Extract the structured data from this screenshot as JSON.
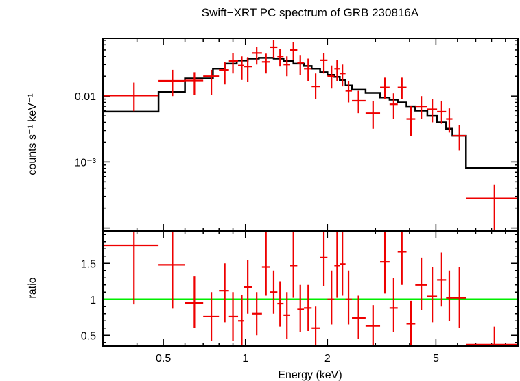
{
  "chart_data": {
    "type": "scatter",
    "title": "Swift−XRT PC spectrum of GRB 230816A",
    "xlabel": "Energy (keV)",
    "xscale": "log",
    "xlim": [
      0.3,
      10
    ],
    "xticks": [
      {
        "value": 0.5,
        "label": "0.5"
      },
      {
        "value": 1,
        "label": "1"
      },
      {
        "value": 2,
        "label": "2"
      },
      {
        "value": 5,
        "label": "5"
      }
    ],
    "colors": {
      "data": "#ee0000",
      "model": "#000000",
      "unity": "#00ee00"
    },
    "panels": [
      {
        "name": "spectrum",
        "ylabel": "counts s⁻¹ keV⁻¹",
        "yscale": "log",
        "ylim": [
          9e-05,
          0.075
        ],
        "yticks": [
          {
            "value": 0.01,
            "label": "0.01"
          },
          {
            "value": 0.001,
            "label": "10⁻³"
          }
        ],
        "data": [
          {
            "x": 0.39,
            "xlo": 0.3,
            "xhi": 0.48,
            "y": 0.0102,
            "ylo": 0.0059,
            "yhi": 0.016
          },
          {
            "x": 0.54,
            "xlo": 0.48,
            "xhi": 0.6,
            "y": 0.017,
            "ylo": 0.01,
            "yhi": 0.025
          },
          {
            "x": 0.65,
            "xlo": 0.6,
            "xhi": 0.7,
            "y": 0.0172,
            "ylo": 0.0105,
            "yhi": 0.023
          },
          {
            "x": 0.75,
            "xlo": 0.7,
            "xhi": 0.8,
            "y": 0.02,
            "ylo": 0.0105,
            "yhi": 0.025
          },
          {
            "x": 0.84,
            "xlo": 0.8,
            "xhi": 0.87,
            "y": 0.025,
            "ylo": 0.015,
            "yhi": 0.033
          },
          {
            "x": 0.9,
            "xlo": 0.87,
            "xhi": 0.94,
            "y": 0.034,
            "ylo": 0.022,
            "yhi": 0.045
          },
          {
            "x": 0.97,
            "xlo": 0.94,
            "xhi": 0.99,
            "y": 0.029,
            "ylo": 0.0175,
            "yhi": 0.04
          },
          {
            "x": 1.02,
            "xlo": 0.99,
            "xhi": 1.06,
            "y": 0.028,
            "ylo": 0.0165,
            "yhi": 0.039
          },
          {
            "x": 1.1,
            "xlo": 1.06,
            "xhi": 1.15,
            "y": 0.045,
            "ylo": 0.03,
            "yhi": 0.055
          },
          {
            "x": 1.19,
            "xlo": 1.15,
            "xhi": 1.23,
            "y": 0.033,
            "ylo": 0.022,
            "yhi": 0.044
          },
          {
            "x": 1.27,
            "xlo": 1.23,
            "xhi": 1.31,
            "y": 0.055,
            "ylo": 0.038,
            "yhi": 0.07
          },
          {
            "x": 1.34,
            "xlo": 1.31,
            "xhi": 1.38,
            "y": 0.04,
            "ylo": 0.028,
            "yhi": 0.052
          },
          {
            "x": 1.42,
            "xlo": 1.38,
            "xhi": 1.46,
            "y": 0.03,
            "ylo": 0.02,
            "yhi": 0.04
          },
          {
            "x": 1.5,
            "xlo": 1.46,
            "xhi": 1.55,
            "y": 0.05,
            "ylo": 0.035,
            "yhi": 0.065
          },
          {
            "x": 1.59,
            "xlo": 1.55,
            "xhi": 1.64,
            "y": 0.032,
            "ylo": 0.021,
            "yhi": 0.042
          },
          {
            "x": 1.7,
            "xlo": 1.64,
            "xhi": 1.75,
            "y": 0.026,
            "ylo": 0.017,
            "yhi": 0.037
          },
          {
            "x": 1.81,
            "xlo": 1.75,
            "xhi": 1.88,
            "y": 0.014,
            "ylo": 0.009,
            "yhi": 0.022
          },
          {
            "x": 1.94,
            "xlo": 1.88,
            "xhi": 2.0,
            "y": 0.035,
            "ylo": 0.022,
            "yhi": 0.045
          },
          {
            "x": 2.07,
            "xlo": 2.0,
            "xhi": 2.12,
            "y": 0.02,
            "ylo": 0.013,
            "yhi": 0.029
          },
          {
            "x": 2.17,
            "xlo": 2.12,
            "xhi": 2.22,
            "y": 0.026,
            "ylo": 0.017,
            "yhi": 0.035
          },
          {
            "x": 2.27,
            "xlo": 2.22,
            "xhi": 2.33,
            "y": 0.022,
            "ylo": 0.014,
            "yhi": 0.03
          },
          {
            "x": 2.39,
            "xlo": 2.33,
            "xhi": 2.46,
            "y": 0.012,
            "ylo": 0.008,
            "yhi": 0.017
          },
          {
            "x": 2.6,
            "xlo": 2.46,
            "xhi": 2.76,
            "y": 0.0085,
            "ylo": 0.0055,
            "yhi": 0.012
          },
          {
            "x": 2.94,
            "xlo": 2.76,
            "xhi": 3.12,
            "y": 0.0055,
            "ylo": 0.0032,
            "yhi": 0.0085
          },
          {
            "x": 3.25,
            "xlo": 3.12,
            "xhi": 3.38,
            "y": 0.0135,
            "ylo": 0.009,
            "yhi": 0.019
          },
          {
            "x": 3.5,
            "xlo": 3.38,
            "xhi": 3.62,
            "y": 0.0075,
            "ylo": 0.0045,
            "yhi": 0.011
          },
          {
            "x": 3.75,
            "xlo": 3.62,
            "xhi": 3.9,
            "y": 0.0135,
            "ylo": 0.009,
            "yhi": 0.019
          },
          {
            "x": 4.05,
            "xlo": 3.9,
            "xhi": 4.2,
            "y": 0.0045,
            "ylo": 0.0025,
            "yhi": 0.007
          },
          {
            "x": 4.42,
            "xlo": 4.2,
            "xhi": 4.65,
            "y": 0.007,
            "ylo": 0.0045,
            "yhi": 0.01
          },
          {
            "x": 4.85,
            "xlo": 4.65,
            "xhi": 5.05,
            "y": 0.0063,
            "ylo": 0.004,
            "yhi": 0.009
          },
          {
            "x": 5.25,
            "xlo": 5.05,
            "xhi": 5.45,
            "y": 0.0058,
            "ylo": 0.0038,
            "yhi": 0.0085
          },
          {
            "x": 5.6,
            "xlo": 5.45,
            "xhi": 5.75,
            "y": 0.0045,
            "ylo": 0.0028,
            "yhi": 0.0065
          },
          {
            "x": 6.1,
            "xlo": 5.75,
            "xhi": 6.45,
            "y": 0.0025,
            "ylo": 0.0015,
            "yhi": 0.0036
          },
          {
            "x": 8.2,
            "xlo": 6.45,
            "xhi": 10.0,
            "y": 0.00028,
            "ylo": 9e-05,
            "yhi": 0.00045
          }
        ],
        "model_steps": [
          {
            "x0": 0.3,
            "x1": 0.48,
            "y": 0.0058
          },
          {
            "x0": 0.48,
            "x1": 0.6,
            "y": 0.0115
          },
          {
            "x0": 0.6,
            "x1": 0.76,
            "y": 0.0185
          },
          {
            "x0": 0.76,
            "x1": 0.84,
            "y": 0.026
          },
          {
            "x0": 0.84,
            "x1": 0.93,
            "y": 0.031
          },
          {
            "x0": 0.93,
            "x1": 1.02,
            "y": 0.0345
          },
          {
            "x0": 1.02,
            "x1": 1.12,
            "y": 0.037
          },
          {
            "x0": 1.12,
            "x1": 1.27,
            "y": 0.038
          },
          {
            "x0": 1.27,
            "x1": 1.38,
            "y": 0.037
          },
          {
            "x0": 1.38,
            "x1": 1.5,
            "y": 0.034
          },
          {
            "x0": 1.5,
            "x1": 1.64,
            "y": 0.031
          },
          {
            "x0": 1.64,
            "x1": 1.75,
            "y": 0.0285
          },
          {
            "x0": 1.75,
            "x1": 1.88,
            "y": 0.026
          },
          {
            "x0": 1.88,
            "x1": 2.0,
            "y": 0.023
          },
          {
            "x0": 2.0,
            "x1": 2.12,
            "y": 0.021
          },
          {
            "x0": 2.12,
            "x1": 2.22,
            "y": 0.0195
          },
          {
            "x0": 2.22,
            "x1": 2.33,
            "y": 0.0175
          },
          {
            "x0": 2.33,
            "x1": 2.46,
            "y": 0.0145
          },
          {
            "x0": 2.46,
            "x1": 2.76,
            "y": 0.0125
          },
          {
            "x0": 2.76,
            "x1": 3.12,
            "y": 0.0112
          },
          {
            "x0": 3.12,
            "x1": 3.38,
            "y": 0.0095
          },
          {
            "x0": 3.38,
            "x1": 3.62,
            "y": 0.0088
          },
          {
            "x0": 3.62,
            "x1": 3.9,
            "y": 0.008
          },
          {
            "x0": 3.9,
            "x1": 4.2,
            "y": 0.007
          },
          {
            "x0": 4.2,
            "x1": 4.65,
            "y": 0.006
          },
          {
            "x0": 4.65,
            "x1": 5.05,
            "y": 0.005
          },
          {
            "x0": 5.05,
            "x1": 5.45,
            "y": 0.004
          },
          {
            "x0": 5.45,
            "x1": 5.75,
            "y": 0.0032
          },
          {
            "x0": 5.75,
            "x1": 6.45,
            "y": 0.0025
          },
          {
            "x0": 6.45,
            "x1": 10.0,
            "y": 0.00082
          }
        ]
      },
      {
        "name": "ratio",
        "ylabel": "ratio",
        "yscale": "linear",
        "ylim": [
          0.35,
          1.95
        ],
        "yticks": [
          {
            "value": 0.5,
            "label": "0.5"
          },
          {
            "value": 1,
            "label": "1"
          },
          {
            "value": 1.5,
            "label": "1.5"
          }
        ],
        "unity_line": 1,
        "data": [
          {
            "x": 0.39,
            "xlo": 0.3,
            "xhi": 0.48,
            "y": 1.75,
            "ylo": 0.93,
            "yhi": 1.95
          },
          {
            "x": 0.54,
            "xlo": 0.48,
            "xhi": 0.6,
            "y": 1.48,
            "ylo": 0.87,
            "yhi": 1.95
          },
          {
            "x": 0.65,
            "xlo": 0.6,
            "xhi": 0.7,
            "y": 0.95,
            "ylo": 0.6,
            "yhi": 1.32
          },
          {
            "x": 0.75,
            "xlo": 0.7,
            "xhi": 0.8,
            "y": 0.76,
            "ylo": 0.42,
            "yhi": 1.1
          },
          {
            "x": 0.84,
            "xlo": 0.8,
            "xhi": 0.87,
            "y": 1.12,
            "ylo": 0.68,
            "yhi": 1.5
          },
          {
            "x": 0.9,
            "xlo": 0.87,
            "xhi": 0.94,
            "y": 0.76,
            "ylo": 0.42,
            "yhi": 1.1
          },
          {
            "x": 0.97,
            "xlo": 0.94,
            "xhi": 0.99,
            "y": 0.7,
            "ylo": 0.35,
            "yhi": 1.06
          },
          {
            "x": 1.02,
            "xlo": 0.99,
            "xhi": 1.06,
            "y": 1.17,
            "ylo": 0.8,
            "yhi": 1.55
          },
          {
            "x": 1.1,
            "xlo": 1.06,
            "xhi": 1.15,
            "y": 0.8,
            "ylo": 0.5,
            "yhi": 1.1
          },
          {
            "x": 1.19,
            "xlo": 1.15,
            "xhi": 1.23,
            "y": 1.45,
            "ylo": 1.05,
            "yhi": 1.95
          },
          {
            "x": 1.27,
            "xlo": 1.23,
            "xhi": 1.31,
            "y": 1.1,
            "ylo": 0.8,
            "yhi": 1.4
          },
          {
            "x": 1.34,
            "xlo": 1.31,
            "xhi": 1.38,
            "y": 0.94,
            "ylo": 0.62,
            "yhi": 1.25
          },
          {
            "x": 1.42,
            "xlo": 1.38,
            "xhi": 1.46,
            "y": 0.78,
            "ylo": 0.45,
            "yhi": 1.1
          },
          {
            "x": 1.5,
            "xlo": 1.46,
            "xhi": 1.55,
            "y": 1.47,
            "ylo": 1.02,
            "yhi": 1.95
          },
          {
            "x": 1.59,
            "xlo": 1.55,
            "xhi": 1.64,
            "y": 0.86,
            "ylo": 0.55,
            "yhi": 1.2
          },
          {
            "x": 1.7,
            "xlo": 1.64,
            "xhi": 1.75,
            "y": 0.88,
            "ylo": 0.56,
            "yhi": 1.2
          },
          {
            "x": 1.81,
            "xlo": 1.75,
            "xhi": 1.88,
            "y": 0.6,
            "ylo": 0.36,
            "yhi": 0.9
          },
          {
            "x": 1.94,
            "xlo": 1.88,
            "xhi": 2.0,
            "y": 1.58,
            "ylo": 1.18,
            "yhi": 1.95
          },
          {
            "x": 2.07,
            "xlo": 2.0,
            "xhi": 2.12,
            "y": 1.0,
            "ylo": 0.65,
            "yhi": 1.4
          },
          {
            "x": 2.17,
            "xlo": 2.12,
            "xhi": 2.22,
            "y": 1.47,
            "ylo": 1.02,
            "yhi": 1.95
          },
          {
            "x": 2.27,
            "xlo": 2.22,
            "xhi": 2.33,
            "y": 1.49,
            "ylo": 1.05,
            "yhi": 1.95
          },
          {
            "x": 2.39,
            "xlo": 2.33,
            "xhi": 2.46,
            "y": 1.0,
            "ylo": 0.65,
            "yhi": 1.4
          },
          {
            "x": 2.6,
            "xlo": 2.46,
            "xhi": 2.76,
            "y": 0.74,
            "ylo": 0.45,
            "yhi": 1.05
          },
          {
            "x": 2.94,
            "xlo": 2.76,
            "xhi": 3.12,
            "y": 0.63,
            "ylo": 0.36,
            "yhi": 0.92
          },
          {
            "x": 3.25,
            "xlo": 3.12,
            "xhi": 3.38,
            "y": 1.52,
            "ylo": 1.08,
            "yhi": 1.95
          },
          {
            "x": 3.5,
            "xlo": 3.38,
            "xhi": 3.62,
            "y": 0.88,
            "ylo": 0.55,
            "yhi": 1.3
          },
          {
            "x": 3.75,
            "xlo": 3.62,
            "xhi": 3.9,
            "y": 1.66,
            "ylo": 1.2,
            "yhi": 1.95
          },
          {
            "x": 4.05,
            "xlo": 3.9,
            "xhi": 4.2,
            "y": 0.66,
            "ylo": 0.36,
            "yhi": 0.98
          },
          {
            "x": 4.42,
            "xlo": 4.2,
            "xhi": 4.65,
            "y": 1.2,
            "ylo": 0.85,
            "yhi": 1.58
          },
          {
            "x": 4.85,
            "xlo": 4.65,
            "xhi": 5.05,
            "y": 1.04,
            "ylo": 0.68,
            "yhi": 1.45
          },
          {
            "x": 5.25,
            "xlo": 5.05,
            "xhi": 5.45,
            "y": 1.27,
            "ylo": 0.9,
            "yhi": 1.65
          },
          {
            "x": 5.6,
            "xlo": 5.45,
            "xhi": 5.75,
            "y": 1.02,
            "ylo": 0.7,
            "yhi": 1.4
          },
          {
            "x": 6.1,
            "xlo": 5.75,
            "xhi": 6.45,
            "y": 1.02,
            "ylo": 0.6,
            "yhi": 1.45
          },
          {
            "x": 8.2,
            "xlo": 6.45,
            "xhi": 10.0,
            "y": 0.37,
            "ylo": 0.35,
            "yhi": 0.62
          }
        ]
      }
    ]
  }
}
